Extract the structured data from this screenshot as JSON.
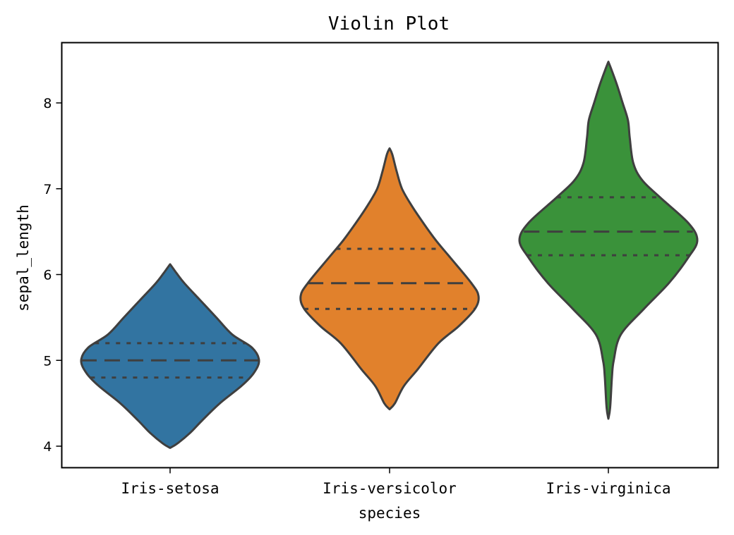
{
  "chart_data": {
    "type": "violin",
    "title": "Violin Plot",
    "xlabel": "species",
    "ylabel": "sepal_length",
    "ylim": [
      3.75,
      8.7
    ],
    "y_ticks": [
      4,
      5,
      6,
      7,
      8
    ],
    "categories": [
      "Iris-setosa",
      "Iris-versicolor",
      "Iris-virginica"
    ],
    "colors": [
      "#3274a1",
      "#e1812c",
      "#3a923a"
    ],
    "grid": false,
    "inner": "quartile",
    "violins": [
      {
        "category": "Iris-setosa",
        "min": 3.98,
        "max": 6.12,
        "q1": 4.8,
        "median": 5.0,
        "q3": 5.2,
        "density": [
          [
            3.98,
            0.0
          ],
          [
            4.03,
            0.08
          ],
          [
            4.15,
            0.22
          ],
          [
            4.3,
            0.36
          ],
          [
            4.5,
            0.56
          ],
          [
            4.7,
            0.8
          ],
          [
            4.85,
            0.94
          ],
          [
            5.0,
            1.0
          ],
          [
            5.15,
            0.92
          ],
          [
            5.3,
            0.7
          ],
          [
            5.5,
            0.52
          ],
          [
            5.7,
            0.34
          ],
          [
            5.9,
            0.16
          ],
          [
            6.02,
            0.07
          ],
          [
            6.12,
            0.0
          ]
        ]
      },
      {
        "category": "Iris-versicolor",
        "min": 4.43,
        "max": 7.47,
        "q1": 5.6,
        "median": 5.9,
        "q3": 6.3,
        "density": [
          [
            4.43,
            0.0
          ],
          [
            4.5,
            0.06
          ],
          [
            4.7,
            0.16
          ],
          [
            4.9,
            0.32
          ],
          [
            5.2,
            0.55
          ],
          [
            5.4,
            0.78
          ],
          [
            5.6,
            0.96
          ],
          [
            5.75,
            1.0
          ],
          [
            5.9,
            0.92
          ],
          [
            6.2,
            0.68
          ],
          [
            6.4,
            0.52
          ],
          [
            6.6,
            0.38
          ],
          [
            6.8,
            0.25
          ],
          [
            7.0,
            0.14
          ],
          [
            7.2,
            0.08
          ],
          [
            7.4,
            0.03
          ],
          [
            7.47,
            0.0
          ]
        ]
      },
      {
        "category": "Iris-virginica",
        "min": 4.32,
        "max": 8.48,
        "q1": 6.225,
        "median": 6.5,
        "q3": 6.9,
        "density": [
          [
            4.32,
            0.0
          ],
          [
            4.45,
            0.02
          ],
          [
            4.8,
            0.04
          ],
          [
            5.0,
            0.06
          ],
          [
            5.3,
            0.14
          ],
          [
            5.6,
            0.4
          ],
          [
            5.9,
            0.68
          ],
          [
            6.2,
            0.9
          ],
          [
            6.4,
            1.0
          ],
          [
            6.6,
            0.9
          ],
          [
            6.9,
            0.58
          ],
          [
            7.1,
            0.38
          ],
          [
            7.3,
            0.28
          ],
          [
            7.6,
            0.24
          ],
          [
            7.8,
            0.22
          ],
          [
            8.0,
            0.16
          ],
          [
            8.2,
            0.1
          ],
          [
            8.4,
            0.03
          ],
          [
            8.48,
            0.0
          ]
        ]
      }
    ]
  }
}
